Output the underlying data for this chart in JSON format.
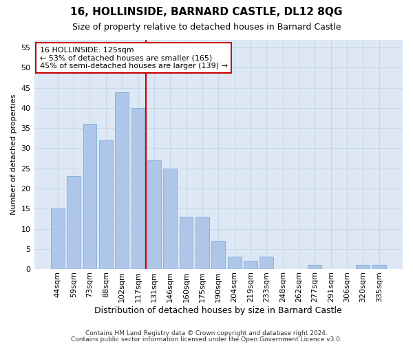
{
  "title": "16, HOLLINSIDE, BARNARD CASTLE, DL12 8QG",
  "subtitle": "Size of property relative to detached houses in Barnard Castle",
  "xlabel": "Distribution of detached houses by size in Barnard Castle",
  "ylabel": "Number of detached properties",
  "footnote1": "Contains HM Land Registry data © Crown copyright and database right 2024.",
  "footnote2": "Contains public sector information licensed under the Open Government Licence v3.0.",
  "categories": [
    "44sqm",
    "59sqm",
    "73sqm",
    "88sqm",
    "102sqm",
    "117sqm",
    "131sqm",
    "146sqm",
    "160sqm",
    "175sqm",
    "190sqm",
    "204sqm",
    "219sqm",
    "233sqm",
    "248sqm",
    "262sqm",
    "277sqm",
    "291sqm",
    "306sqm",
    "320sqm",
    "335sqm"
  ],
  "values": [
    15,
    23,
    36,
    32,
    44,
    40,
    27,
    25,
    13,
    13,
    7,
    3,
    2,
    3,
    0,
    0,
    1,
    0,
    0,
    1,
    1
  ],
  "bar_color": "#aec6e8",
  "bar_edge_color": "#7aafe0",
  "grid_color": "#c8d8ea",
  "background_color": "#dde8f4",
  "property_line_x": 5.5,
  "property_label": "16 HOLLINSIDE: 125sqm",
  "annotation_line1": "← 53% of detached houses are smaller (165)",
  "annotation_line2": "45% of semi-detached houses are larger (139) →",
  "annotation_box_color": "#ffffff",
  "annotation_box_edge": "#cc0000",
  "property_vline_color": "#cc0000",
  "ylim": [
    0,
    57
  ],
  "yticks": [
    0,
    5,
    10,
    15,
    20,
    25,
    30,
    35,
    40,
    45,
    50,
    55
  ],
  "title_fontsize": 11,
  "subtitle_fontsize": 9,
  "ylabel_fontsize": 8,
  "xlabel_fontsize": 9,
  "tick_fontsize": 8,
  "footnote_fontsize": 6.5
}
